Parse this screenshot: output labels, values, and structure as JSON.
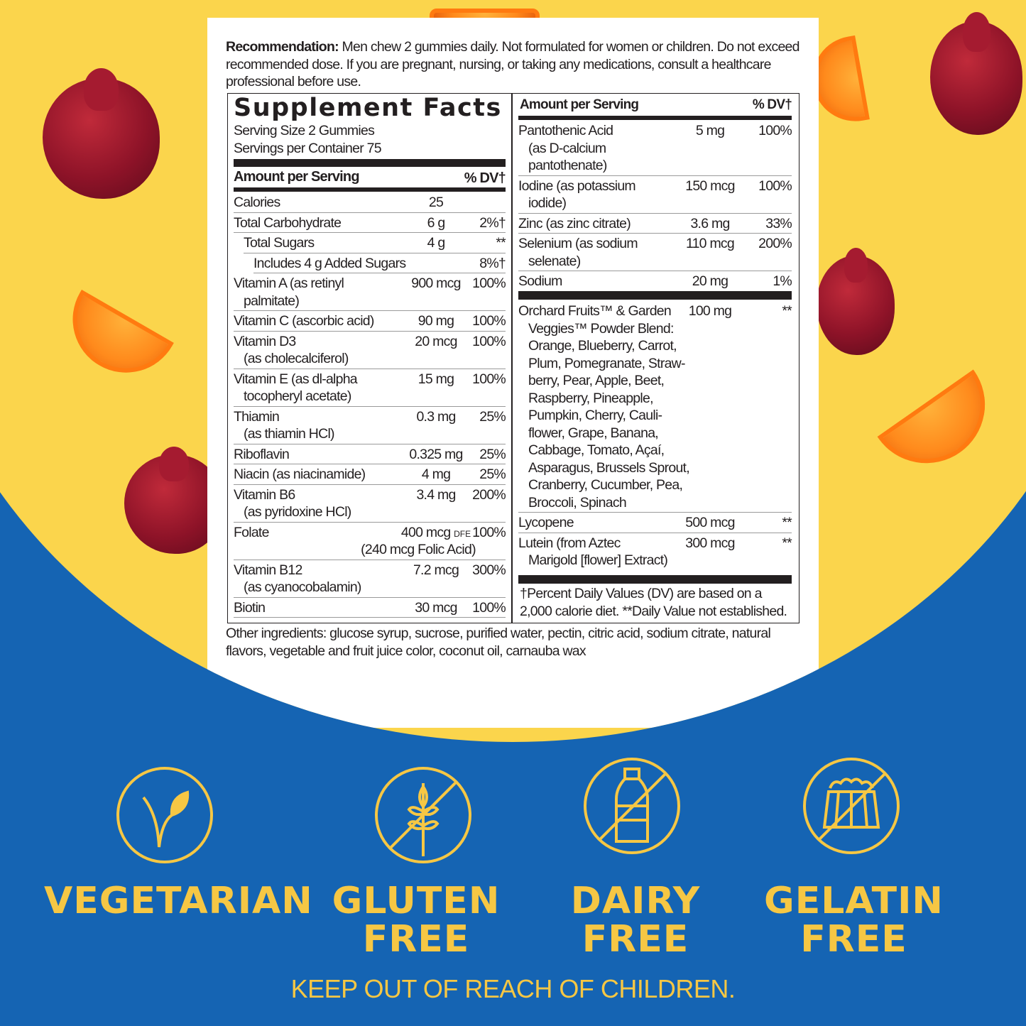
{
  "recommendation": {
    "label": "Recommendation:",
    "text": " Men chew 2 gummies daily. Not formulated for women or children. Do not exceed recommended dose. If you are pregnant, nursing, or taking any medications, consult a healthcare professional before use."
  },
  "facts": {
    "title": "Supplement Facts",
    "serving_size": "Serving Size 2 Gummies",
    "servings_per_container": "Servings per Container 75",
    "amount_header": "Amount per Serving",
    "dv_header": "% DV†",
    "left_rows": [
      {
        "name": "Calories",
        "amount": "25",
        "dv": "",
        "indent": 0,
        "lines": 1
      },
      {
        "name": "Total Carbohydrate",
        "amount": "6 g",
        "dv": "2%†",
        "indent": 0,
        "lines": 1
      },
      {
        "name": "Total Sugars",
        "amount": "4 g",
        "dv": "**",
        "indent": 1,
        "lines": 1
      },
      {
        "name": "Includes 4 g Added Sugars",
        "amount": "",
        "dv": "8%†",
        "indent": 2,
        "lines": 1
      },
      {
        "name": "Vitamin A (as retinyl\npalmitate)",
        "amount": "900 mcg",
        "dv": "100%",
        "indent": 0,
        "lines": 2
      },
      {
        "name": "Vitamin C (ascorbic acid)",
        "amount": "90 mg",
        "dv": "100%",
        "indent": 0,
        "lines": 1
      },
      {
        "name": "Vitamin D3\n(as cholecalciferol)",
        "amount": "20 mcg",
        "dv": "100%",
        "indent": 0,
        "lines": 2
      },
      {
        "name": "Vitamin E (as dl-alpha\ntocopheryl acetate)",
        "amount": "15 mg",
        "dv": "100%",
        "indent": 0,
        "lines": 2
      },
      {
        "name": "Thiamin\n(as thiamin HCl)",
        "amount": "0.3 mg",
        "dv": "25%",
        "indent": 0,
        "lines": 2
      },
      {
        "name": "Riboflavin",
        "amount": "0.325 mg",
        "dv": "25%",
        "indent": 0,
        "lines": 1
      },
      {
        "name": "Niacin (as niacinamide)",
        "amount": "4 mg",
        "dv": "25%",
        "indent": 0,
        "lines": 1
      },
      {
        "name": "Vitamin B6\n(as pyridoxine HCl)",
        "amount": "3.4 mg",
        "dv": "200%",
        "indent": 0,
        "lines": 2
      },
      {
        "name": "Folate",
        "amount": "400 mcg",
        "amount_unit": "DFE",
        "amount2": "(240 mcg Folic Acid)",
        "dv": "100%",
        "indent": 0,
        "lines": 2
      },
      {
        "name": "Vitamin B12\n(as cyanocobalamin)",
        "amount": "7.2 mcg",
        "dv": "300%",
        "indent": 0,
        "lines": 2
      },
      {
        "name": "Biotin",
        "amount": "30 mcg",
        "dv": "100%",
        "indent": 0,
        "lines": 1
      }
    ],
    "right_group1": [
      {
        "name": "Pantothenic Acid\n(as D-calcium\npantothenate)",
        "amount": "5 mg",
        "dv": "100%",
        "lines": 3
      },
      {
        "name": "Iodine (as potassium\niodide)",
        "amount": "150 mcg",
        "dv": "100%",
        "lines": 2
      },
      {
        "name": "Zinc (as zinc citrate)",
        "amount": "3.6 mg",
        "dv": "33%",
        "lines": 1
      },
      {
        "name": "Selenium (as sodium\nselenate)",
        "amount": "110 mcg",
        "dv": "200%",
        "lines": 2
      },
      {
        "name": "Sodium",
        "amount": "20 mg",
        "dv": "1%",
        "lines": 1
      }
    ],
    "right_group2": [
      {
        "name": "Orchard Fruits™ & Garden\nVeggies™ Powder Blend:\nOrange, Blueberry, Carrot,\nPlum, Pomegranate, Straw-\nberry, Pear, Apple, Beet,\nRaspberry, Pineapple,\nPumpkin, Cherry, Cauli-\nflower, Grape, Banana,\nCabbage, Tomato, Açaí,\nAsparagus, Brussels Sprout,\nCranberry, Cucumber, Pea,\nBroccoli, Spinach",
        "amount": "100 mg",
        "dv": "**",
        "lines": 12
      },
      {
        "name": "Lycopene",
        "amount": "500 mcg",
        "dv": "**",
        "lines": 1
      },
      {
        "name": "Lutein (from Aztec\nMarigold [flower] Extract)",
        "amount": "300 mcg",
        "dv": "**",
        "lines": 2
      }
    ],
    "footnote": "†Percent Daily Values (DV) are based on a 2,000 calorie diet. **Daily Value not established."
  },
  "other_ingredients": "Other ingredients: glucose syrup, sucrose, purified water, pectin, citric acid, sodium citrate, natural flavors, vegetable and fruit juice color, coconut oil, carnauba wax",
  "badges": [
    {
      "icon": "leaf-icon",
      "line1": "VEGETARIAN",
      "line2": ""
    },
    {
      "icon": "no-wheat-icon",
      "line1": "GLUTEN",
      "line2": "FREE"
    },
    {
      "icon": "no-milk-bottle-icon",
      "line1": "DAIRY",
      "line2": "FREE"
    },
    {
      "icon": "no-gelatin-icon",
      "line1": "GELATIN",
      "line2": "FREE"
    }
  ],
  "warning": "KEEP OUT OF REACH OF CHILDREN.",
  "colors": {
    "yellow_bg": "#fbd54c",
    "blue_bg": "#1564b3",
    "badge_yellow": "#f6c744",
    "cherry": "#8e1328",
    "orange_slice": "#ff8a1c"
  }
}
